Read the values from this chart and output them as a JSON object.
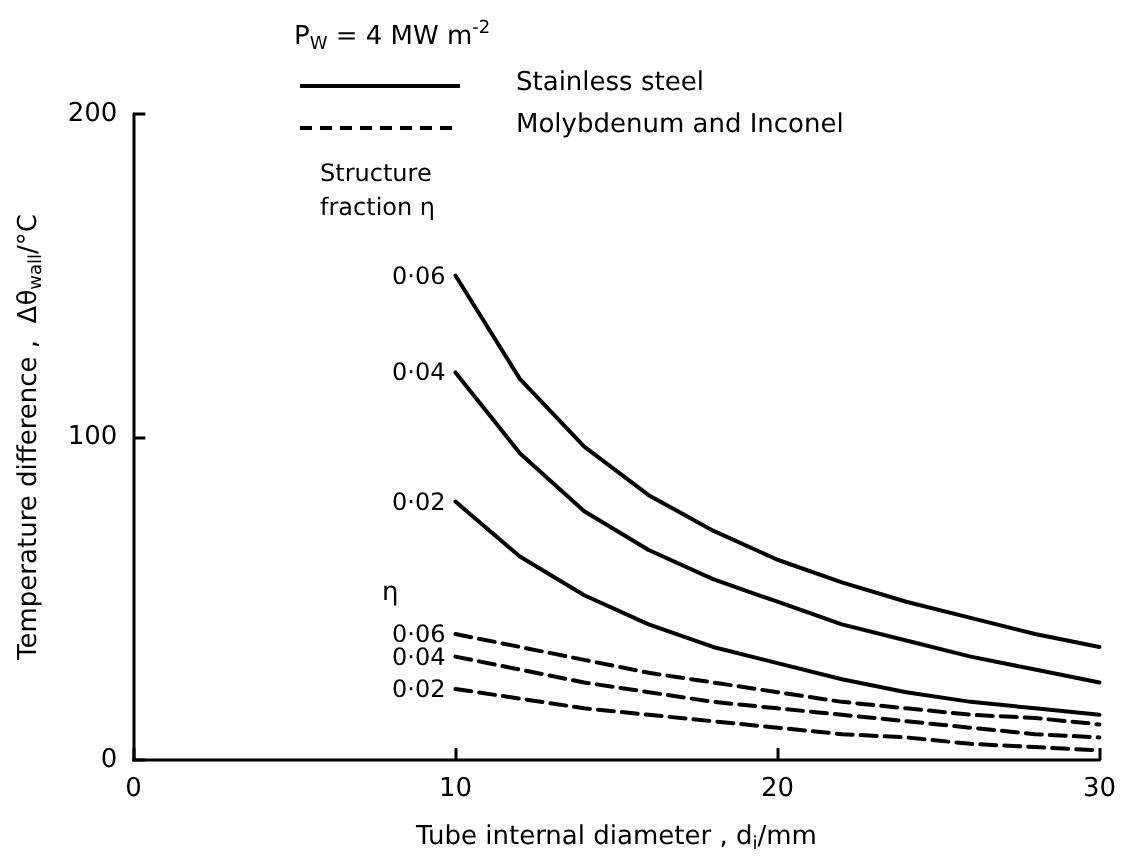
{
  "chart_data": {
    "type": "line",
    "xlabel": "Tube internal diameter , d$_{i}$/mm",
    "ylabel": "Temperature difference ,  Δθ$_{wall}$/°C",
    "legend_title": "P$_{W}$ = 4 MW m$^{-2}$",
    "annotations": [
      "Stainless steel",
      "Molybdenum and Inconel",
      "Structure fraction η",
      "η"
    ],
    "x": [
      10,
      12,
      14,
      16,
      18,
      20,
      22,
      24,
      26,
      28,
      30
    ],
    "xlim": [
      0,
      30
    ],
    "xticks": [
      0,
      10,
      20,
      30
    ],
    "ylim": [
      0,
      200
    ],
    "yticks": [
      0,
      100,
      200
    ],
    "grid": false,
    "marker": "none",
    "series": [
      {
        "name": "0·06",
        "color": "#000000",
        "line_style": "solid",
        "values": [
          150,
          118,
          97,
          82,
          71,
          62,
          55,
          49,
          44,
          39,
          35
        ]
      },
      {
        "name": "0·04",
        "color": "#000000",
        "line_style": "solid",
        "values": [
          120,
          95,
          77,
          65,
          56,
          49,
          42,
          37,
          32,
          28,
          24
        ]
      },
      {
        "name": "0·02",
        "color": "#000000",
        "line_style": "solid",
        "values": [
          80,
          63,
          51,
          42,
          35,
          30,
          25,
          21,
          18,
          16,
          14
        ]
      },
      {
        "name": "0·06",
        "color": "#000000",
        "line_style": "dashed",
        "values": [
          39,
          35,
          31,
          27,
          24,
          21,
          18,
          16,
          14,
          13,
          11
        ]
      },
      {
        "name": "0·04",
        "color": "#000000",
        "line_style": "dashed",
        "values": [
          32,
          28,
          24,
          21,
          18,
          16,
          14,
          12,
          10,
          8,
          7
        ]
      },
      {
        "name": "0·02",
        "color": "#000000",
        "line_style": "dashed",
        "values": [
          22,
          19,
          16,
          14,
          12,
          10,
          8,
          7,
          5,
          4,
          3
        ]
      }
    ]
  }
}
